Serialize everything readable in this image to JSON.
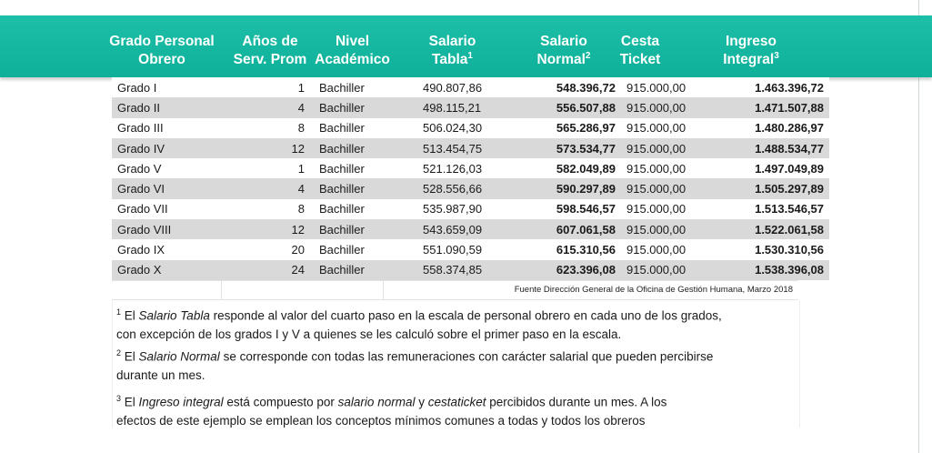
{
  "header": {
    "col1": [
      "Grado Personal",
      "Obrero"
    ],
    "col2": [
      "Años de",
      "Serv. Prom"
    ],
    "col3": [
      "Nivel",
      "Académico"
    ],
    "col4": [
      "Salario",
      "Tabla"
    ],
    "col4_sup": "1",
    "col5": [
      "Salario",
      "Normal"
    ],
    "col5_sup": "2",
    "col6": [
      "Cesta",
      "Ticket"
    ],
    "col7": [
      "Ingreso",
      "Integral"
    ],
    "col7_sup": "3",
    "band_color": "#13b6a0"
  },
  "rows": [
    {
      "grado": "Grado I",
      "anos": "1",
      "nivel": "Bachiller",
      "tabla": "490.807,86",
      "normal": "548.396,72",
      "cesta": "915.000,00",
      "ingreso": "1.463.396,72"
    },
    {
      "grado": "Grado II",
      "anos": "4",
      "nivel": "Bachiller",
      "tabla": "498.115,21",
      "normal": "556.507,88",
      "cesta": "915.000,00",
      "ingreso": "1.471.507,88"
    },
    {
      "grado": "Grado III",
      "anos": "8",
      "nivel": "Bachiller",
      "tabla": "506.024,30",
      "normal": "565.286,97",
      "cesta": "915.000,00",
      "ingreso": "1.480.286,97"
    },
    {
      "grado": "Grado IV",
      "anos": "12",
      "nivel": "Bachiller",
      "tabla": "513.454,75",
      "normal": "573.534,77",
      "cesta": "915.000,00",
      "ingreso": "1.488.534,77"
    },
    {
      "grado": "Grado V",
      "anos": "1",
      "nivel": "Bachiller",
      "tabla": "521.126,03",
      "normal": "582.049,89",
      "cesta": "915.000,00",
      "ingreso": "1.497.049,89"
    },
    {
      "grado": "Grado VI",
      "anos": "4",
      "nivel": "Bachiller",
      "tabla": "528.556,66",
      "normal": "590.297,89",
      "cesta": "915.000,00",
      "ingreso": "1.505.297,89"
    },
    {
      "grado": "Grado VII",
      "anos": "8",
      "nivel": "Bachiller",
      "tabla": "535.987,90",
      "normal": "598.546,57",
      "cesta": "915.000,00",
      "ingreso": "1.513.546,57"
    },
    {
      "grado": "Grado VIII",
      "anos": "12",
      "nivel": "Bachiller",
      "tabla": "543.659,09",
      "normal": "607.061,58",
      "cesta": "915.000,00",
      "ingreso": "1.522.061,58"
    },
    {
      "grado": "Grado IX",
      "anos": "20",
      "nivel": "Bachiller",
      "tabla": "551.090,59",
      "normal": "615.310,56",
      "cesta": "915.000,00",
      "ingreso": "1.530.310,56"
    },
    {
      "grado": "Grado X",
      "anos": "24",
      "nivel": "Bachiller",
      "tabla": "558.374,85",
      "normal": "623.396,08",
      "cesta": "915.000,00",
      "ingreso": "1.538.396,08"
    }
  ],
  "source": "Fuente Dirección General de la Oficina de Gestión Humana, Marzo 2018",
  "notes": {
    "n1": {
      "sup": "1",
      "pre": " El ",
      "term": "Salario Tabla",
      "post": " responde al valor del cuarto paso en la escala de personal obrero en cada uno de los grados,",
      "line2": "con excepción de los grados I y V a quienes se les calculó sobre el primer paso en la escala."
    },
    "n2": {
      "sup": "2",
      "pre": " El ",
      "term": "Salario Normal",
      "post": " se corresponde con todas las remuneraciones con carácter salarial que pueden percibirse",
      "line2": "durante un mes."
    },
    "n3": {
      "sup": "3",
      "pre": " El ",
      "term": "Ingreso integral",
      "mid1": " está compuesto por ",
      "term2": "salario normal",
      "mid2": " y ",
      "term3": "cestaticket",
      "post": " percibidos durante un mes. A los",
      "line2": "efectos de este ejemplo se emplean los conceptos mínimos comunes a todas y todos los obreros"
    }
  }
}
